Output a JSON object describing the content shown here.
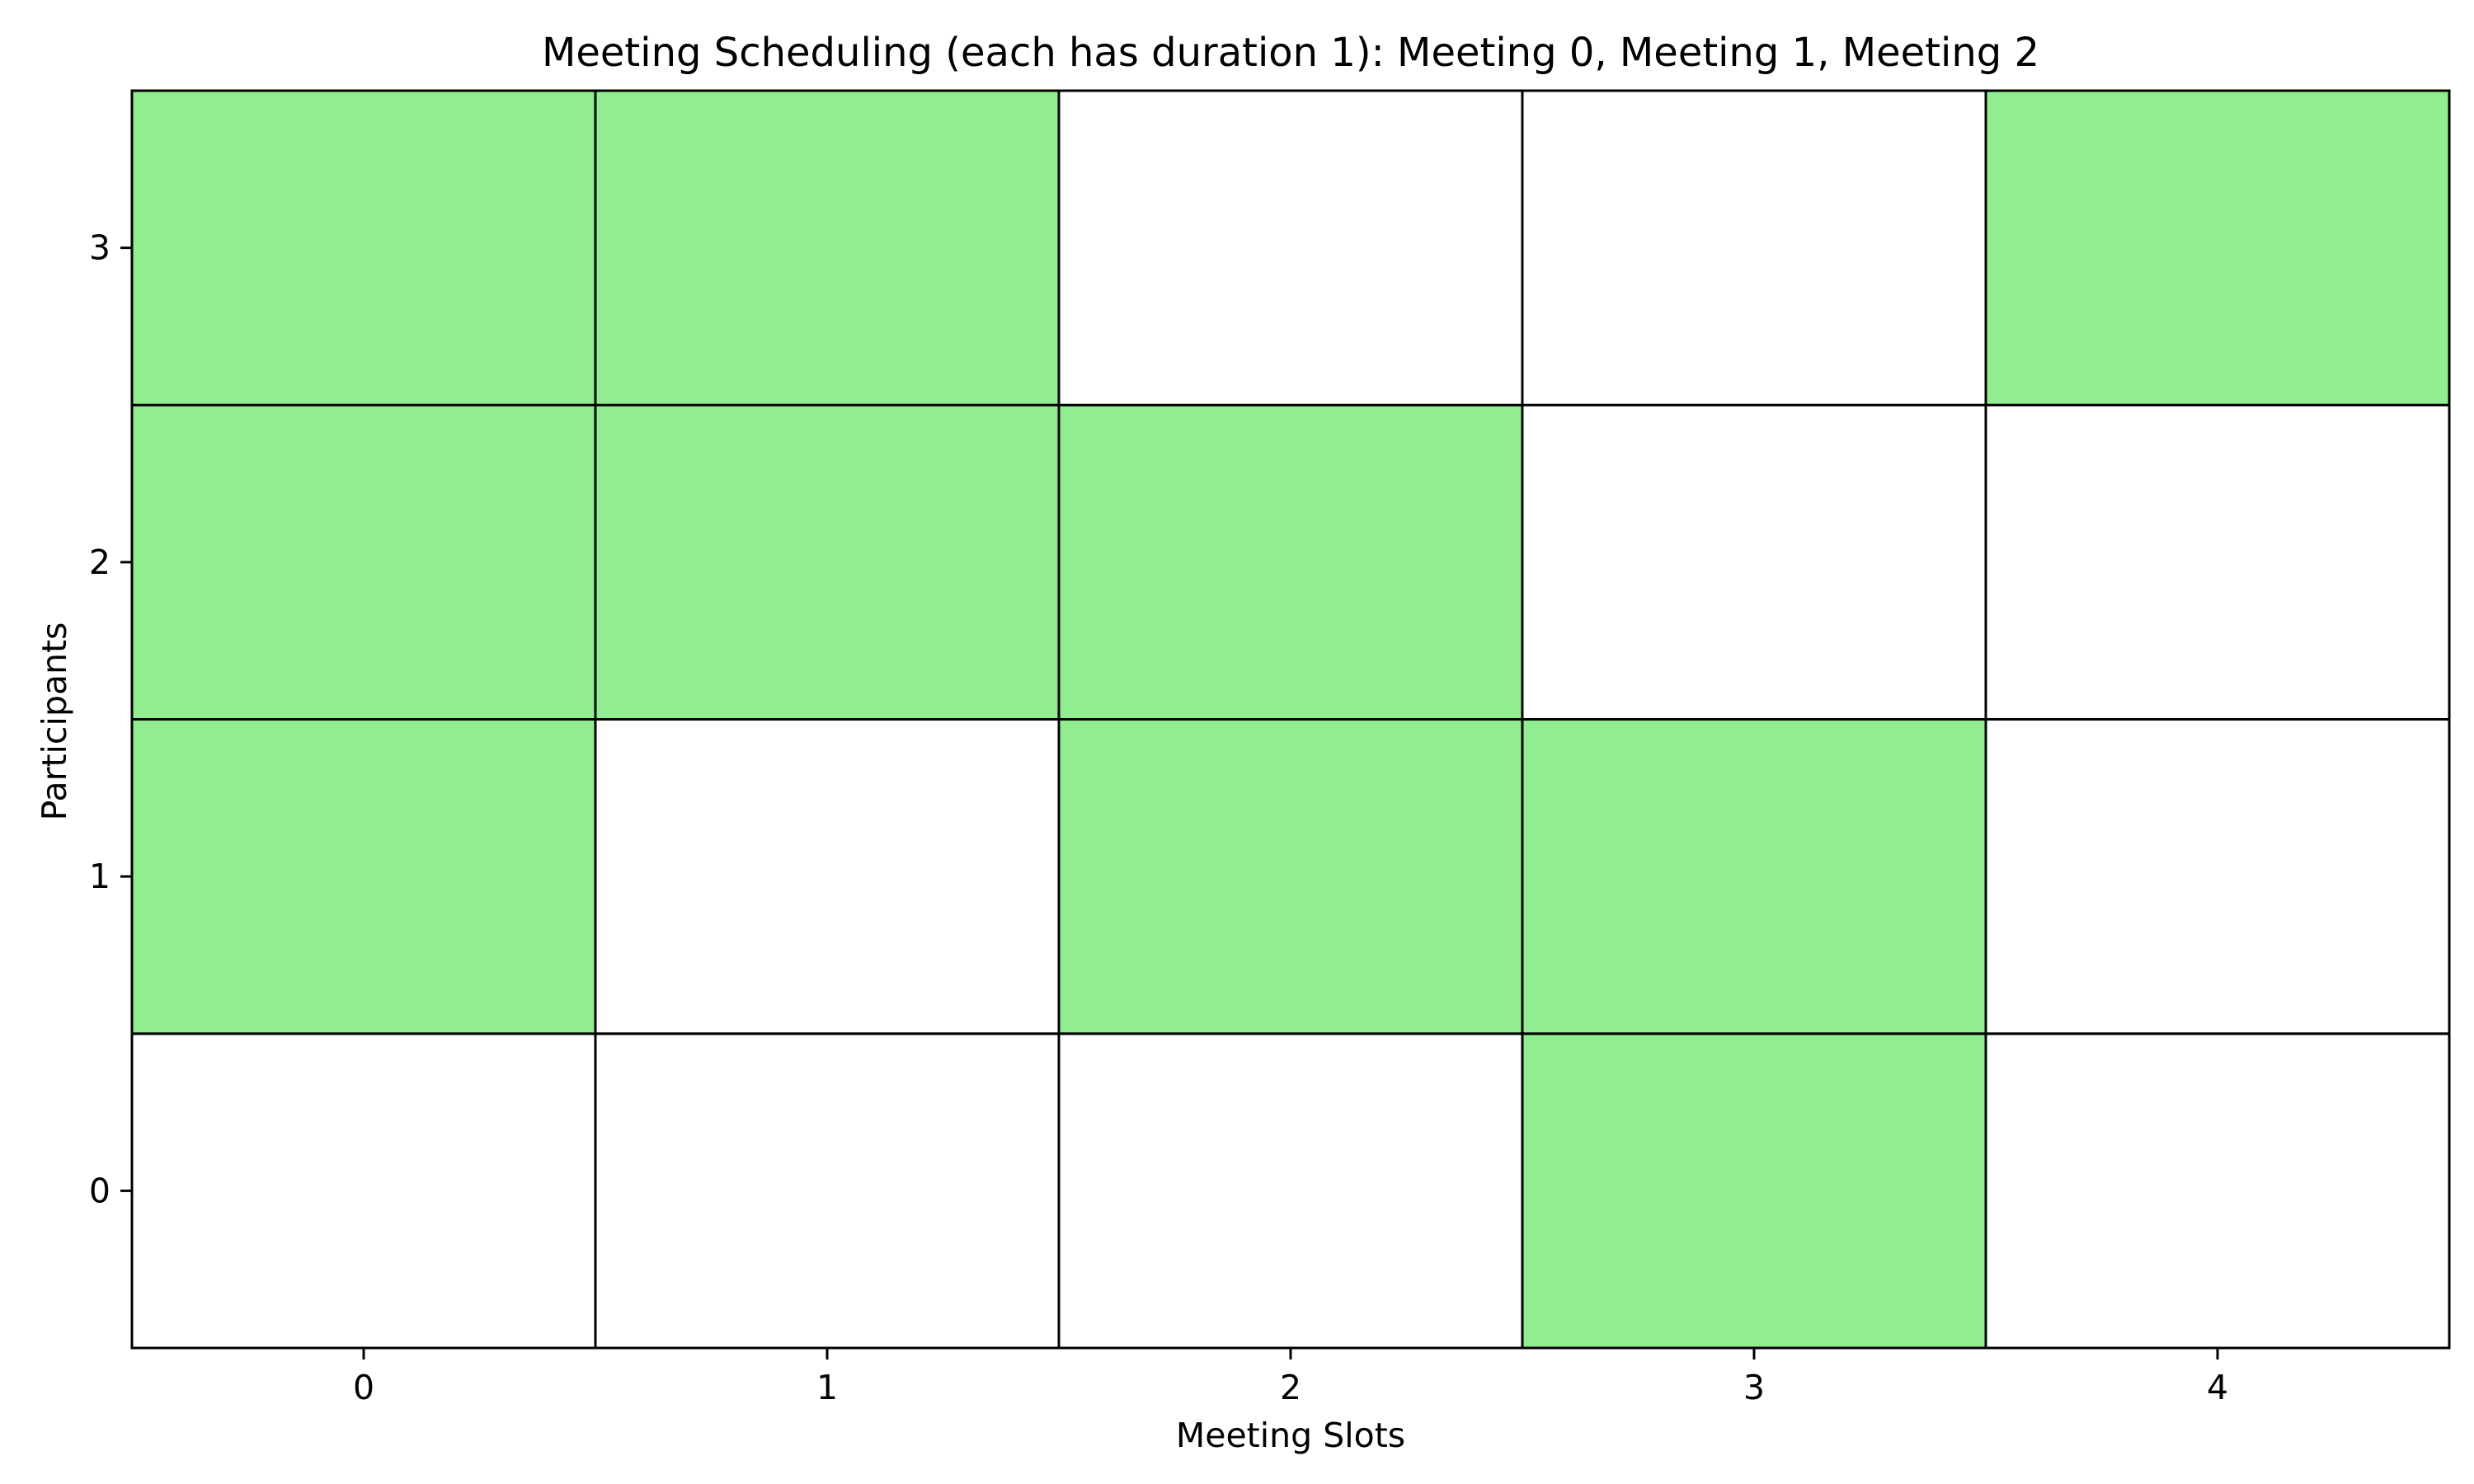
{
  "chart_data": {
    "type": "heatmap",
    "title": "Meeting Scheduling (each has duration 1): Meeting 0, Meeting 1, Meeting 2",
    "xlabel": "Meeting Slots",
    "ylabel": "Participants",
    "x_ticks": [
      "0",
      "1",
      "2",
      "3",
      "4"
    ],
    "y_ticks": [
      "0",
      "1",
      "2",
      "3"
    ],
    "xlim": [
      -0.5,
      4.5
    ],
    "ylim": [
      -0.5,
      3.5
    ],
    "legend": "none",
    "grid": false,
    "cell_edge_color": "#000000",
    "colors": {
      "available": "#90ee90",
      "unavailable": "#ffffff"
    },
    "value_meaning": {
      "1": "available",
      "0": "unavailable"
    },
    "rows": [
      {
        "participant": 0,
        "values": [
          0,
          0,
          0,
          1,
          0
        ]
      },
      {
        "participant": 1,
        "values": [
          1,
          0,
          1,
          1,
          0
        ]
      },
      {
        "participant": 2,
        "values": [
          1,
          1,
          1,
          0,
          0
        ]
      },
      {
        "participant": 3,
        "values": [
          1,
          1,
          0,
          0,
          1
        ]
      }
    ]
  }
}
